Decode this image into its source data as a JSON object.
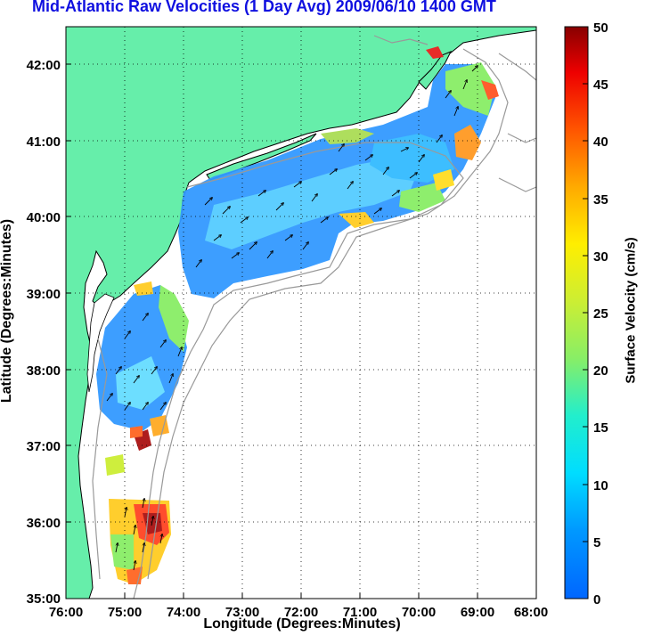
{
  "title": "Mid-Atlantic Raw Velocities (1 Day Avg) 2009/06/10 1400 GMT",
  "xaxis_label": "Longitude (Degrees:Minutes)",
  "yaxis_label": "Latitude (Degrees:Minutes)",
  "colorbar_label": "Surface Velocity (cm/s)",
  "map": {
    "x_ticks": [
      "76:00",
      "75:00",
      "74:00",
      "73:00",
      "72:00",
      "71:00",
      "70:00",
      "69:00",
      "68:00"
    ],
    "y_ticks": [
      "42:00",
      "41:00",
      "40:00",
      "39:00",
      "38:00",
      "37:00",
      "36:00",
      "35:00"
    ],
    "lon_range": [
      -76,
      -68
    ],
    "lat_range": [
      35,
      42.5
    ],
    "grid": "dotted",
    "land_color": "#66eeaa",
    "colormap": "jet"
  },
  "colorbar": {
    "ticks": [
      "0",
      "5",
      "10",
      "15",
      "20",
      "25",
      "30",
      "35",
      "40",
      "45",
      "50"
    ],
    "range": [
      0,
      50
    ],
    "units": "cm/s"
  }
}
